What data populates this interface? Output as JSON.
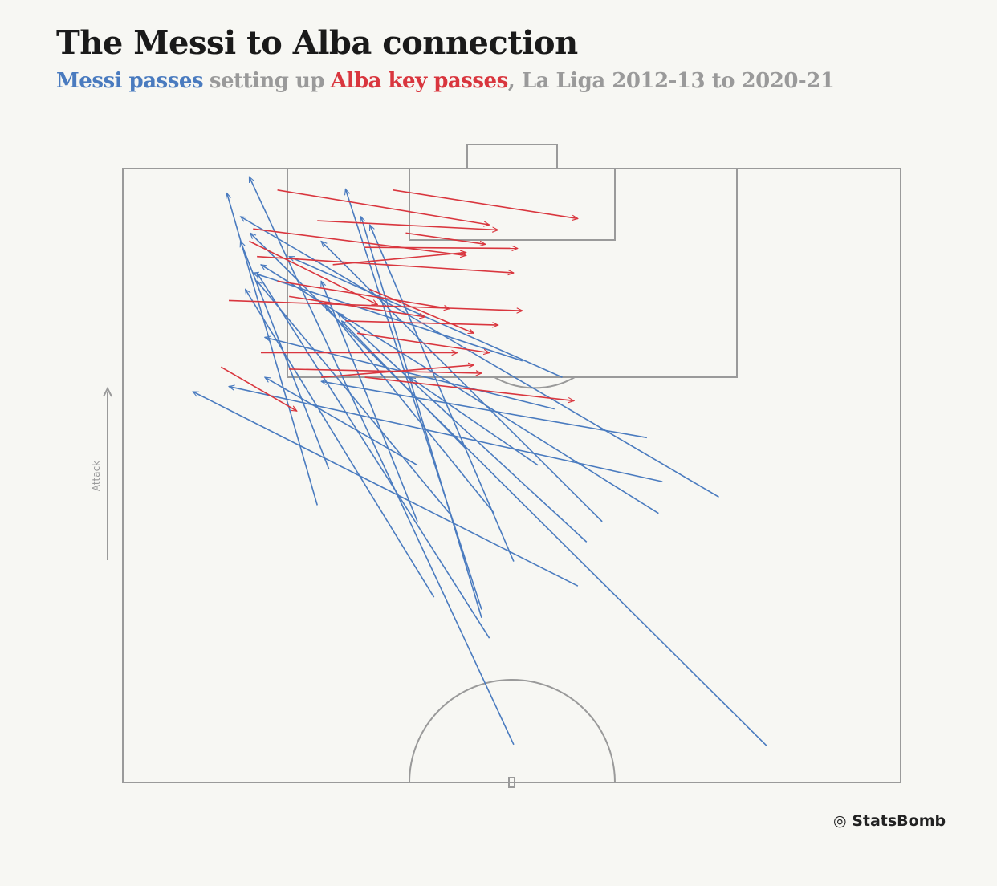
{
  "chart_data": {
    "type": "pass-map",
    "title": "The Messi to Alba connection",
    "subtitle": [
      "setting up",
      ", La Liga 2012-13 to 2020-21"
    ],
    "direction_label": "Attack",
    "source": "StatsBomb",
    "xlim": [
      0,
      80
    ],
    "ylim": [
      60,
      120
    ],
    "series": [
      {
        "name": "Messi passes",
        "color": "#4a7bbf",
        "x": [
          40.2,
          66.2,
          37.7,
          61.3,
          55.1,
          46.8,
          55.5,
          53.9,
          36.9,
          32.0,
          47.7,
          20.0,
          21.2,
          40.2,
          44.4,
          33.6,
          38.2,
          30.3,
          36.9,
          42.7,
          45.2,
          35.3,
          30.3,
          41.1,
          49.3
        ],
        "y": [
          63.7,
          63.6,
          74.1,
          87.9,
          86.3,
          79.2,
          89.4,
          93.7,
          76.9,
          78.1,
          83.5,
          87.1,
          90.6,
          81.6,
          96.5,
          86.3,
          86.3,
          85.5,
          76.1,
          91.0,
          99.6,
          92.6,
          91.0,
          101.2,
          85.5
        ],
        "end_x": [
          13.0,
          13.1,
          13.8,
          12.1,
          14.2,
          7.2,
          10.9,
          20.4,
          22.9,
          12.6,
          22.1,
          10.7,
          12.1,
          25.4,
          14.6,
          13.8,
          20.8,
          20.4,
          24.5,
          29.5,
          17.1,
          22.5,
          14.6,
          13.4,
          20.4
        ],
        "end_y": [
          119.2,
          113.7,
          109.8,
          115.3,
          110.6,
          98.2,
          98.7,
          99.2,
          118.0,
          108.2,
          105.9,
          117.6,
          112.9,
          114.5,
          103.5,
          109.0,
          106.7,
          109.0,
          115.3,
          99.6,
          111.4,
          105.1,
          99.6,
          109.8,
          112.9
        ]
      },
      {
        "name": "Alba key passes",
        "color": "#d9363e",
        "x": [
          15.9,
          27.8,
          20.0,
          13.4,
          24.9,
          13.8,
          21.6,
          15.9,
          10.9,
          17.1,
          22.9,
          24.1,
          14.2,
          17.1,
          10.1,
          24.9,
          20.4,
          25.4,
          13.0,
          29.1
        ],
        "y": [
          117.9,
          117.9,
          114.9,
          114.1,
          112.3,
          111.4,
          110.6,
          109.0,
          107.1,
          107.5,
          105.1,
          103.9,
          102.0,
          100.4,
          100.6,
          99.6,
          99.6,
          108.2,
          112.9,
          113.7
        ],
        "end_x": [
          37.7,
          46.8,
          38.6,
          35.3,
          40.6,
          40.2,
          35.3,
          33.6,
          41.1,
          31.1,
          38.6,
          37.7,
          34.4,
          36.9,
          17.9,
          46.4,
          36.1,
          36.1,
          26.2,
          37.3
        ],
        "end_y": [
          114.5,
          115.1,
          114.0,
          111.5,
          112.2,
          109.8,
          111.8,
          106.3,
          106.1,
          105.5,
          104.7,
          102.0,
          102.0,
          100.0,
          96.3,
          97.3,
          100.8,
          103.9,
          106.7,
          112.6
        ]
      }
    ]
  }
}
